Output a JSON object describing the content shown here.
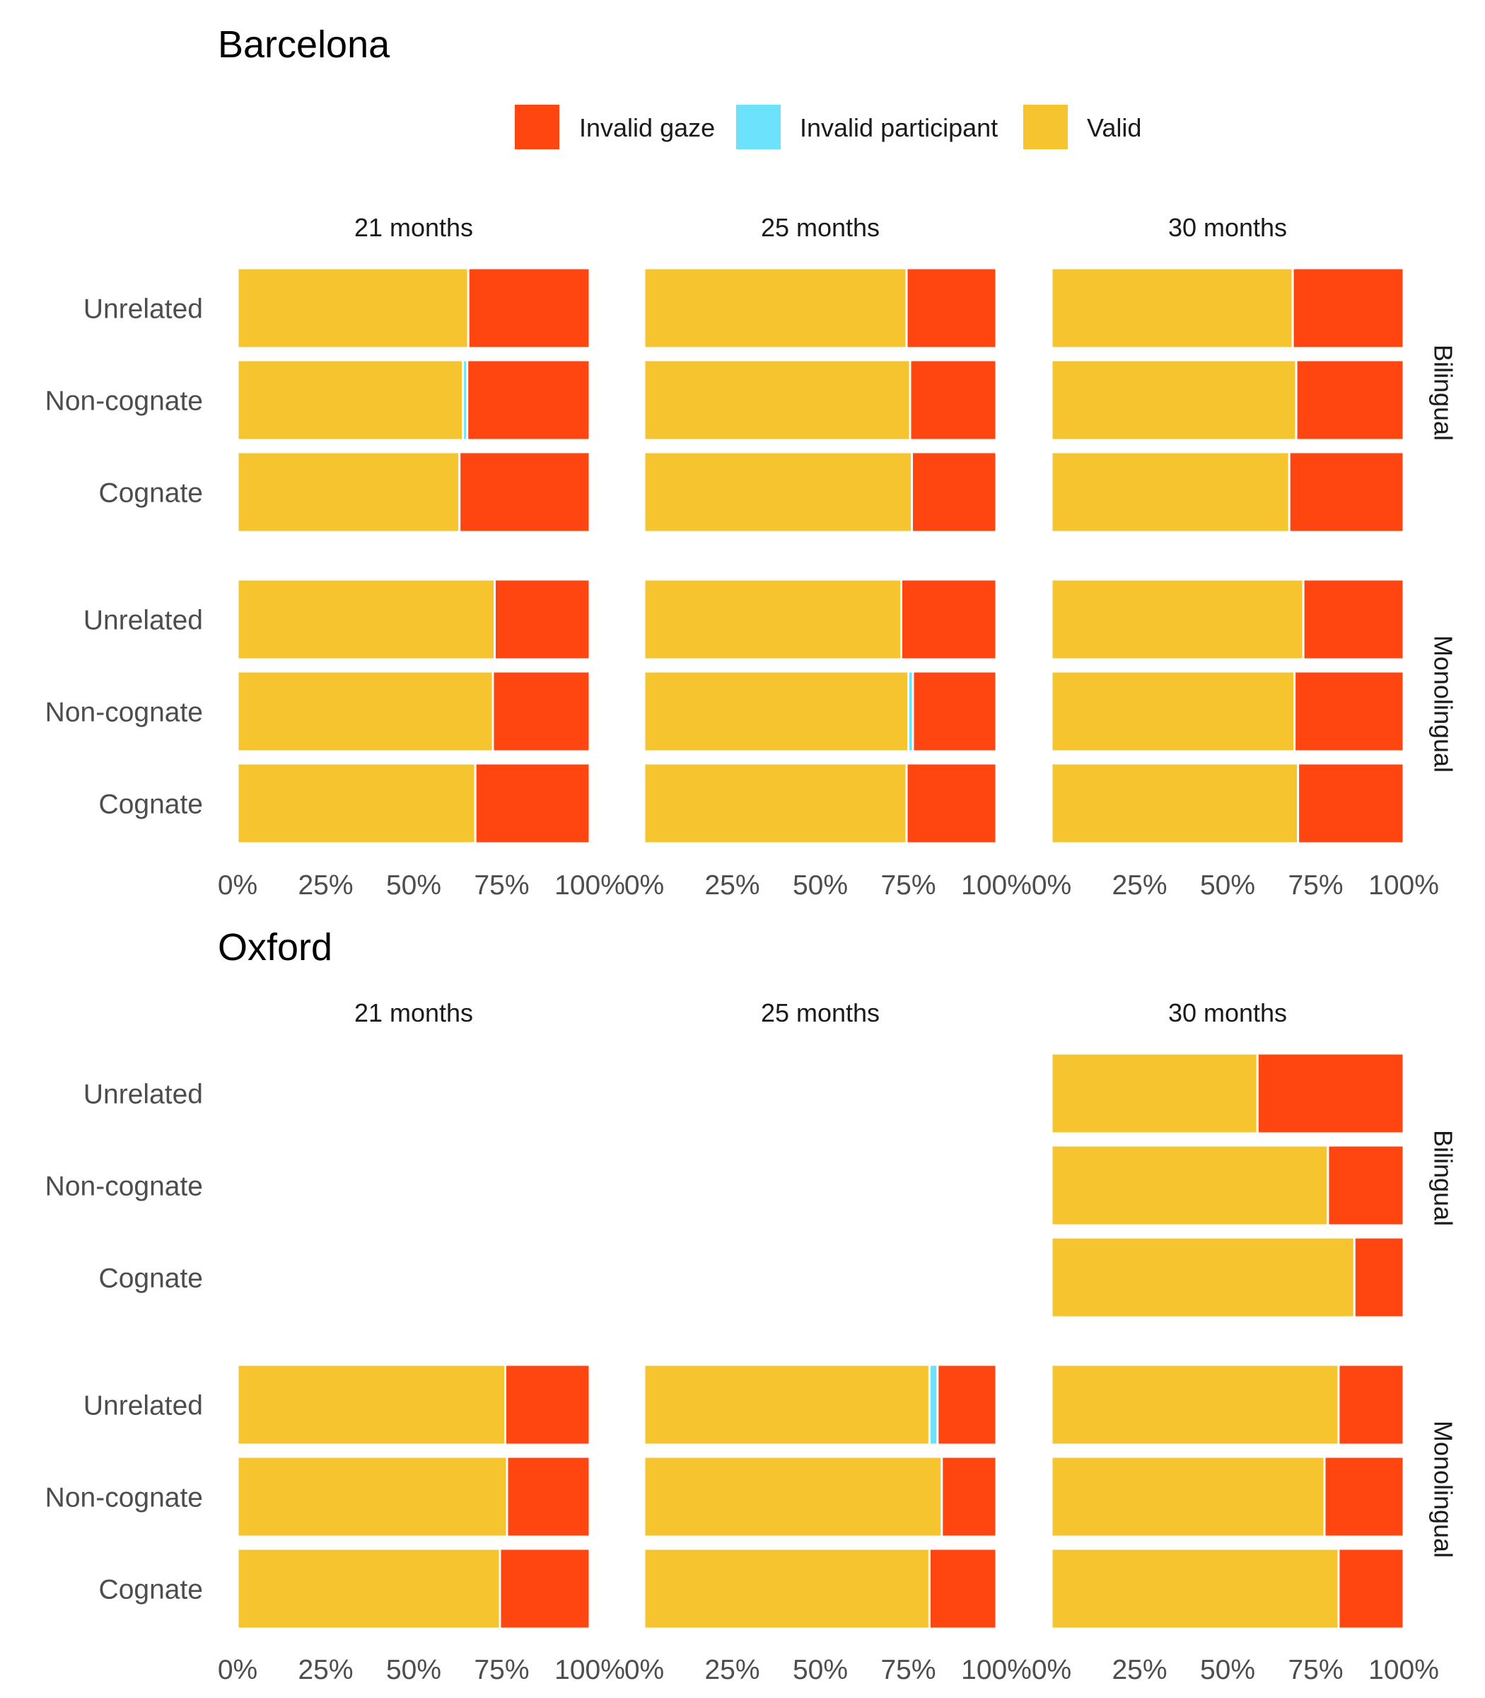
{
  "colors": {
    "Invalid gaze": "#FF4510",
    "Invalid participant": "#6DE2FC",
    "Valid": "#F6C42F"
  },
  "legend": {
    "items": [
      {
        "label": "Invalid gaze",
        "color": "#FF4510"
      },
      {
        "label": "Invalid participant",
        "color": "#6DE2FC"
      },
      {
        "label": "Valid",
        "color": "#F6C42F"
      }
    ]
  },
  "chart_data": [
    {
      "type": "bar",
      "orientation": "horizontal-stacked-percent",
      "title": "Barcelona",
      "columns": [
        "21 months",
        "25 months",
        "30 months"
      ],
      "groups": [
        "Bilingual",
        "Monolingual"
      ],
      "categories": [
        "Unrelated",
        "Non-cognate",
        "Cognate"
      ],
      "series_order": [
        "Valid",
        "Invalid participant",
        "Invalid gaze"
      ],
      "x_ticks": [
        "0%",
        "25%",
        "50%",
        "75%",
        "100%"
      ],
      "xlim": [
        0,
        100
      ],
      "legend_position": "top",
      "panels": [
        {
          "column": "21 months",
          "group": "Bilingual",
          "bars": [
            {
              "category": "Unrelated",
              "Valid": 65.5,
              "Invalid participant": 0,
              "Invalid gaze": 34.5
            },
            {
              "category": "Non-cognate",
              "Valid": 64.0,
              "Invalid participant": 1.2,
              "Invalid gaze": 34.8
            },
            {
              "category": "Cognate",
              "Valid": 63.0,
              "Invalid participant": 0,
              "Invalid gaze": 37.0
            }
          ]
        },
        {
          "column": "25 months",
          "group": "Bilingual",
          "bars": [
            {
              "category": "Unrelated",
              "Valid": 74.5,
              "Invalid participant": 0,
              "Invalid gaze": 25.5
            },
            {
              "category": "Non-cognate",
              "Valid": 75.5,
              "Invalid participant": 0,
              "Invalid gaze": 24.5
            },
            {
              "category": "Cognate",
              "Valid": 76.0,
              "Invalid participant": 0,
              "Invalid gaze": 24.0
            }
          ]
        },
        {
          "column": "30 months",
          "group": "Bilingual",
          "bars": [
            {
              "category": "Unrelated",
              "Valid": 68.5,
              "Invalid participant": 0,
              "Invalid gaze": 31.5
            },
            {
              "category": "Non-cognate",
              "Valid": 69.5,
              "Invalid participant": 0,
              "Invalid gaze": 30.5
            },
            {
              "category": "Cognate",
              "Valid": 67.5,
              "Invalid participant": 0,
              "Invalid gaze": 32.5
            }
          ]
        },
        {
          "column": "21 months",
          "group": "Monolingual",
          "bars": [
            {
              "category": "Unrelated",
              "Valid": 73.0,
              "Invalid participant": 0,
              "Invalid gaze": 27.0
            },
            {
              "category": "Non-cognate",
              "Valid": 72.5,
              "Invalid participant": 0,
              "Invalid gaze": 27.5
            },
            {
              "category": "Cognate",
              "Valid": 67.5,
              "Invalid participant": 0,
              "Invalid gaze": 32.5
            }
          ]
        },
        {
          "column": "25 months",
          "group": "Monolingual",
          "bars": [
            {
              "category": "Unrelated",
              "Valid": 73.0,
              "Invalid participant": 0,
              "Invalid gaze": 27.0
            },
            {
              "category": "Non-cognate",
              "Valid": 75.0,
              "Invalid participant": 1.3,
              "Invalid gaze": 23.7
            },
            {
              "category": "Cognate",
              "Valid": 74.5,
              "Invalid participant": 0,
              "Invalid gaze": 25.5
            }
          ]
        },
        {
          "column": "30 months",
          "group": "Monolingual",
          "bars": [
            {
              "category": "Unrelated",
              "Valid": 71.5,
              "Invalid participant": 0,
              "Invalid gaze": 28.5
            },
            {
              "category": "Non-cognate",
              "Valid": 69.0,
              "Invalid participant": 0,
              "Invalid gaze": 31.0
            },
            {
              "category": "Cognate",
              "Valid": 70.0,
              "Invalid participant": 0,
              "Invalid gaze": 30.0
            }
          ]
        }
      ]
    },
    {
      "type": "bar",
      "orientation": "horizontal-stacked-percent",
      "title": "Oxford",
      "columns": [
        "21 months",
        "25 months",
        "30 months"
      ],
      "groups": [
        "Bilingual",
        "Monolingual"
      ],
      "categories": [
        "Unrelated",
        "Non-cognate",
        "Cognate"
      ],
      "series_order": [
        "Valid",
        "Invalid participant",
        "Invalid gaze"
      ],
      "x_ticks": [
        "0%",
        "25%",
        "50%",
        "75%",
        "100%"
      ],
      "xlim": [
        0,
        100
      ],
      "panels": [
        {
          "column": "21 months",
          "group": "Bilingual",
          "bars": []
        },
        {
          "column": "25 months",
          "group": "Bilingual",
          "bars": []
        },
        {
          "column": "30 months",
          "group": "Bilingual",
          "bars": [
            {
              "category": "Unrelated",
              "Valid": 58.5,
              "Invalid participant": 0,
              "Invalid gaze": 41.5
            },
            {
              "category": "Non-cognate",
              "Valid": 78.5,
              "Invalid participant": 0,
              "Invalid gaze": 21.5
            },
            {
              "category": "Cognate",
              "Valid": 86.0,
              "Invalid participant": 0,
              "Invalid gaze": 14.0
            }
          ]
        },
        {
          "column": "21 months",
          "group": "Monolingual",
          "bars": [
            {
              "category": "Unrelated",
              "Valid": 76.0,
              "Invalid participant": 0,
              "Invalid gaze": 24.0
            },
            {
              "category": "Non-cognate",
              "Valid": 76.5,
              "Invalid participant": 0,
              "Invalid gaze": 23.5
            },
            {
              "category": "Cognate",
              "Valid": 74.5,
              "Invalid participant": 0,
              "Invalid gaze": 25.5
            }
          ]
        },
        {
          "column": "25 months",
          "group": "Monolingual",
          "bars": [
            {
              "category": "Unrelated",
              "Valid": 81.0,
              "Invalid participant": 2.3,
              "Invalid gaze": 16.7
            },
            {
              "category": "Non-cognate",
              "Valid": 84.5,
              "Invalid participant": 0,
              "Invalid gaze": 15.5
            },
            {
              "category": "Cognate",
              "Valid": 81.0,
              "Invalid participant": 0,
              "Invalid gaze": 19.0
            }
          ]
        },
        {
          "column": "30 months",
          "group": "Monolingual",
          "bars": [
            {
              "category": "Unrelated",
              "Valid": 81.5,
              "Invalid participant": 0,
              "Invalid gaze": 18.5
            },
            {
              "category": "Non-cognate",
              "Valid": 77.5,
              "Invalid participant": 0,
              "Invalid gaze": 22.5
            },
            {
              "category": "Cognate",
              "Valid": 81.5,
              "Invalid participant": 0,
              "Invalid gaze": 18.5
            }
          ]
        }
      ]
    }
  ]
}
